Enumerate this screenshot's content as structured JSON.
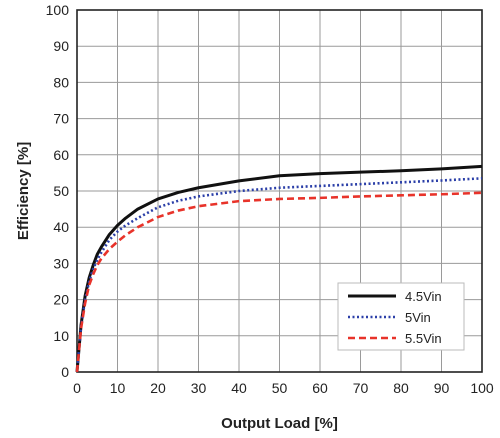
{
  "chart_data": {
    "type": "line",
    "xlabel": "Output Load [%]",
    "ylabel": "Efficiency [%]",
    "xlim": [
      0,
      100
    ],
    "ylim": [
      0,
      100
    ],
    "xticks": [
      0,
      10,
      20,
      30,
      40,
      50,
      60,
      70,
      80,
      90,
      100
    ],
    "yticks": [
      0,
      10,
      20,
      30,
      40,
      50,
      60,
      70,
      80,
      90,
      100
    ],
    "grid": true,
    "legend_position": "bottom-right",
    "series": [
      {
        "name": "4.5Vin",
        "color": "#111111",
        "style": "solid",
        "x": [
          0,
          1,
          2,
          3,
          4,
          5,
          6,
          8,
          10,
          12,
          15,
          20,
          25,
          30,
          40,
          50,
          60,
          70,
          80,
          90,
          100
        ],
        "y": [
          0,
          13,
          21,
          26,
          29.5,
          32.5,
          34.5,
          38,
          40.5,
          42.5,
          45,
          47.8,
          49.6,
          50.9,
          52.8,
          54.2,
          54.8,
          55.2,
          55.6,
          56.1,
          56.8
        ]
      },
      {
        "name": "5Vin",
        "color": "#2b3fa8",
        "style": "dotted",
        "x": [
          0,
          1,
          2,
          3,
          4,
          5,
          6,
          8,
          10,
          12,
          15,
          20,
          25,
          30,
          40,
          50,
          60,
          70,
          80,
          90,
          100
        ],
        "y": [
          0,
          12.5,
          20,
          25,
          28.5,
          31,
          33,
          36.5,
          38.8,
          40.5,
          42.5,
          45.5,
          47.3,
          48.5,
          50,
          50.9,
          51.4,
          51.9,
          52.4,
          52.9,
          53.5
        ]
      },
      {
        "name": "5.5Vin",
        "color": "#e8332a",
        "style": "dashed",
        "x": [
          0,
          1,
          2,
          3,
          4,
          5,
          6,
          8,
          10,
          12,
          15,
          20,
          25,
          30,
          40,
          50,
          60,
          70,
          80,
          90,
          100
        ],
        "y": [
          0,
          12,
          19,
          24,
          27,
          29.5,
          31.3,
          34,
          36,
          37.8,
          40,
          42.8,
          44.6,
          45.8,
          47.2,
          47.8,
          48.1,
          48.5,
          48.8,
          49.1,
          49.5
        ]
      }
    ]
  }
}
